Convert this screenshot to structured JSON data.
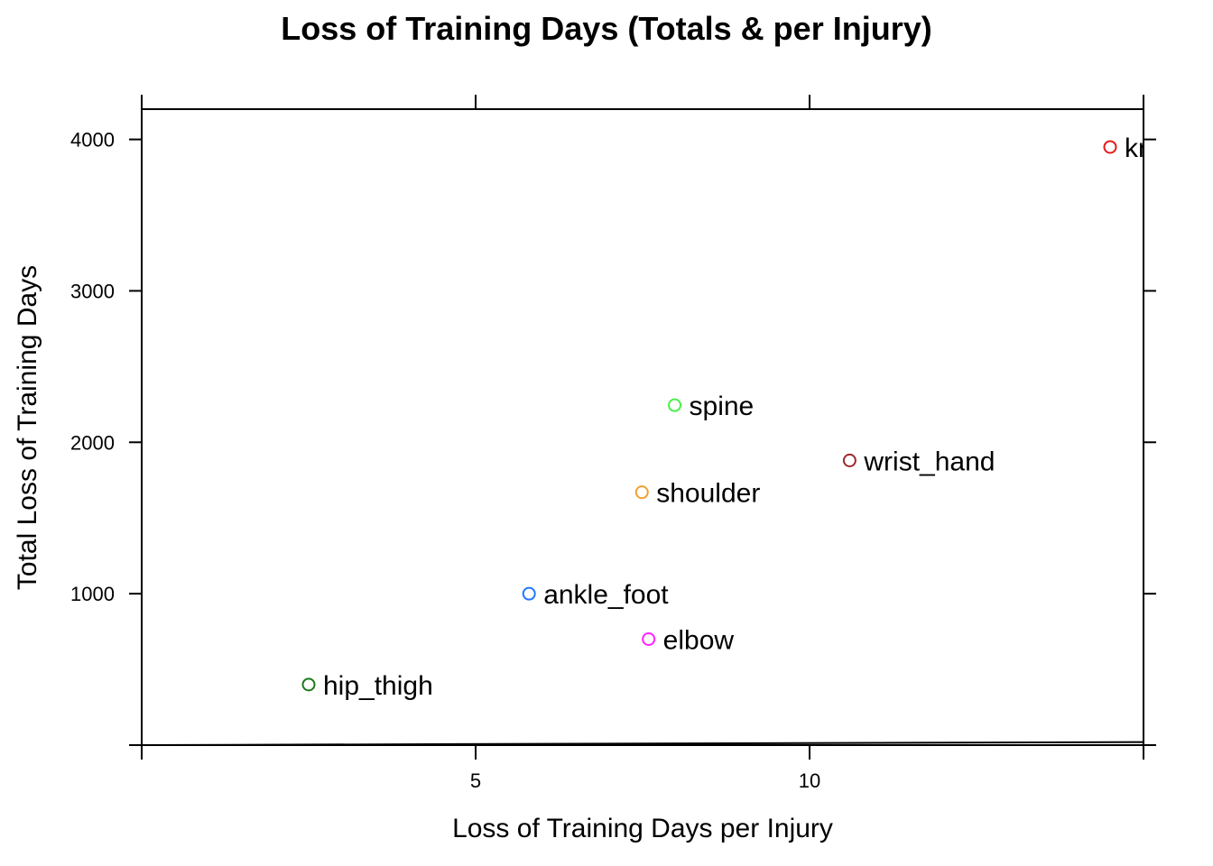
{
  "chart_data": {
    "type": "scatter",
    "title": "Loss of Training Days (Totals & per Injury)",
    "xlabel": "Loss of Training Days per Injury",
    "ylabel": "Total Loss of Training Days",
    "xlim": [
      0,
      15
    ],
    "ylim": [
      0,
      4200
    ],
    "xticks": [
      5,
      10
    ],
    "xtick_labels": [
      "5",
      "10"
    ],
    "yticks": [
      1000,
      2000,
      3000,
      4000
    ],
    "ytick_labels": [
      "1000",
      "2000",
      "3000",
      "4000"
    ],
    "grid": false,
    "legend": "none",
    "points": [
      {
        "label": "knee",
        "x": 14.5,
        "y": 3950,
        "color": "#e41a1c"
      },
      {
        "label": "spine",
        "x": 7.98,
        "y": 2245,
        "color": "#4af04a"
      },
      {
        "label": "wrist_hand",
        "x": 10.6,
        "y": 1880,
        "color": "#a0282a"
      },
      {
        "label": "shoulder",
        "x": 7.49,
        "y": 1670,
        "color": "#f0a030"
      },
      {
        "label": "ankle_foot",
        "x": 5.8,
        "y": 1000,
        "color": "#1f78ff"
      },
      {
        "label": "elbow",
        "x": 7.59,
        "y": 700,
        "color": "#ff20ff"
      },
      {
        "label": "hip_thigh",
        "x": 2.5,
        "y": 400,
        "color": "#1a7a1a"
      }
    ]
  }
}
